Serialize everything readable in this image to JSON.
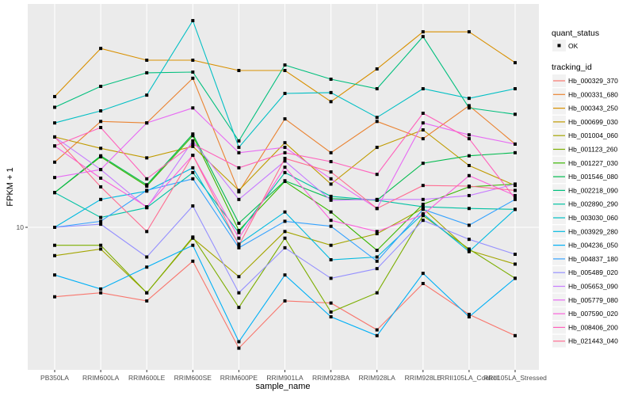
{
  "chart_data": {
    "type": "line",
    "title": "",
    "xlabel": "sample_name",
    "ylabel": "FPKM + 1",
    "y_scale": "log10",
    "y_ticks": [
      10
    ],
    "y_tick_labels": [
      "10"
    ],
    "ylim": [
      2.6,
      88
    ],
    "grid": true,
    "legend_position": "right",
    "categories": [
      "PB350LA",
      "RRIM600LA",
      "RRIM600LE",
      "RRIM600SE",
      "RRIM600PE",
      "RRIM901LA",
      "RRIM928BA",
      "RRIM928LA",
      "RRIM928LE",
      "RRII105LA_Control",
      "RRII105LA_Stressed"
    ],
    "point_legend": {
      "title": "quant_status",
      "entries": [
        {
          "label": "OK",
          "shape": "point"
        }
      ]
    },
    "legend_title": "tracking_id",
    "series": [
      {
        "name": "Hb_000329_370",
        "color": "#F8766D",
        "values": [
          5.1,
          5.3,
          4.9,
          7.2,
          3.1,
          4.9,
          4.8,
          3.7,
          5.8,
          4.3,
          3.5
        ]
      },
      {
        "name": "Hb_000331_680",
        "color": "#EA8331",
        "values": [
          18.8,
          27.9,
          27.5,
          42.4,
          14.1,
          28.6,
          20.6,
          27.9,
          23.6,
          32.5,
          22.4
        ]
      },
      {
        "name": "Hb_000343_250",
        "color": "#D89000",
        "values": [
          35.5,
          56.6,
          50.5,
          50.5,
          45.7,
          45.7,
          33.8,
          46.4,
          66.5,
          66.5,
          49.3
        ]
      },
      {
        "name": "Hb_000699_030",
        "color": "#C09B00",
        "values": [
          24.0,
          21.5,
          19.6,
          21.9,
          14.3,
          22.7,
          15.2,
          21.7,
          25.7,
          18.2,
          15.0
        ]
      },
      {
        "name": "Hb_001004_060",
        "color": "#A3A500",
        "values": [
          7.6,
          8.1,
          5.3,
          9.0,
          6.2,
          9.6,
          8.4,
          9.4,
          12.0,
          8.0,
          7.0
        ]
      },
      {
        "name": "Hb_001123_260",
        "color": "#7CAE00",
        "values": [
          8.4,
          8.4,
          5.3,
          9.1,
          4.6,
          9.0,
          4.4,
          5.3,
          11.2,
          8.1,
          6.1
        ]
      },
      {
        "name": "Hb_001227_030",
        "color": "#39B600",
        "values": [
          14.0,
          19.8,
          14.9,
          24.3,
          9.7,
          15.6,
          11.6,
          8.0,
          12.5,
          14.8,
          15.2
        ]
      },
      {
        "name": "Hb_001546_080",
        "color": "#00BB4E",
        "values": [
          14.0,
          20.0,
          15.1,
          24.7,
          10.4,
          15.7,
          13.2,
          13.0,
          18.6,
          20.0,
          20.6
        ]
      },
      {
        "name": "Hb_002218_090",
        "color": "#00BF7D",
        "values": [
          32.0,
          39.2,
          44.7,
          45.0,
          23.1,
          48.2,
          42.0,
          38.3,
          63.5,
          31.8,
          29.9
        ]
      },
      {
        "name": "Hb_002890_290",
        "color": "#00C1A3",
        "values": [
          14.0,
          11.0,
          12.1,
          17.0,
          9.5,
          17.0,
          13.5,
          13.0,
          12.2,
          12.0,
          11.9
        ]
      },
      {
        "name": "Hb_003030_060",
        "color": "#00BFC4",
        "values": [
          27.5,
          30.9,
          36.0,
          74.1,
          21.7,
          36.6,
          36.9,
          29.0,
          38.3,
          34.9,
          38.3
        ]
      },
      {
        "name": "Hb_003929_280",
        "color": "#00BAE0",
        "values": [
          10.0,
          13.1,
          14.2,
          17.8,
          8.5,
          11.6,
          7.3,
          7.5,
          11.4,
          7.9,
          11.9
        ]
      },
      {
        "name": "Hb_004236_050",
        "color": "#00B0F6",
        "values": [
          6.3,
          5.5,
          6.8,
          8.4,
          3.3,
          6.3,
          4.2,
          3.5,
          6.4,
          4.2,
          6.1
        ]
      },
      {
        "name": "Hb_004837_180",
        "color": "#35A2FF",
        "values": [
          10.0,
          10.6,
          14.3,
          16.0,
          8.2,
          10.6,
          10.1,
          7.2,
          11.9,
          10.2,
          13.1
        ]
      },
      {
        "name": "Hb_005489_020",
        "color": "#9590FF",
        "values": [
          10.0,
          10.3,
          7.5,
          12.3,
          5.3,
          8.2,
          6.1,
          6.7,
          10.7,
          8.9,
          7.7
        ]
      },
      {
        "name": "Hb_005653_090",
        "color": "#C77CFF",
        "values": [
          24.0,
          17.5,
          12.1,
          23.1,
          13.1,
          19.0,
          13.0,
          13.1,
          13.1,
          13.6,
          15.2
        ]
      },
      {
        "name": "Hb_005779_080",
        "color": "#E76BF3",
        "values": [
          16.2,
          17.5,
          27.5,
          31.8,
          20.6,
          21.7,
          16.0,
          12.0,
          27.5,
          24.5,
          22.4
        ]
      },
      {
        "name": "Hb_007590_020",
        "color": "#FA62DB",
        "values": [
          22.0,
          16.1,
          12.2,
          20.1,
          9.0,
          17.9,
          10.7,
          9.6,
          11.3,
          16.5,
          13.6
        ]
      },
      {
        "name": "Hb_008406_200",
        "color": "#FF62BC",
        "values": [
          22.0,
          26.3,
          16.0,
          22.4,
          17.8,
          20.6,
          18.9,
          16.7,
          30.2,
          23.6,
          13.2
        ]
      },
      {
        "name": "Hb_021443_040",
        "color": "#FF6C91",
        "values": [
          24.0,
          14.8,
          9.6,
          20.1,
          8.4,
          19.5,
          17.1,
          12.0,
          15.0,
          14.9,
          14.3
        ]
      }
    ]
  }
}
